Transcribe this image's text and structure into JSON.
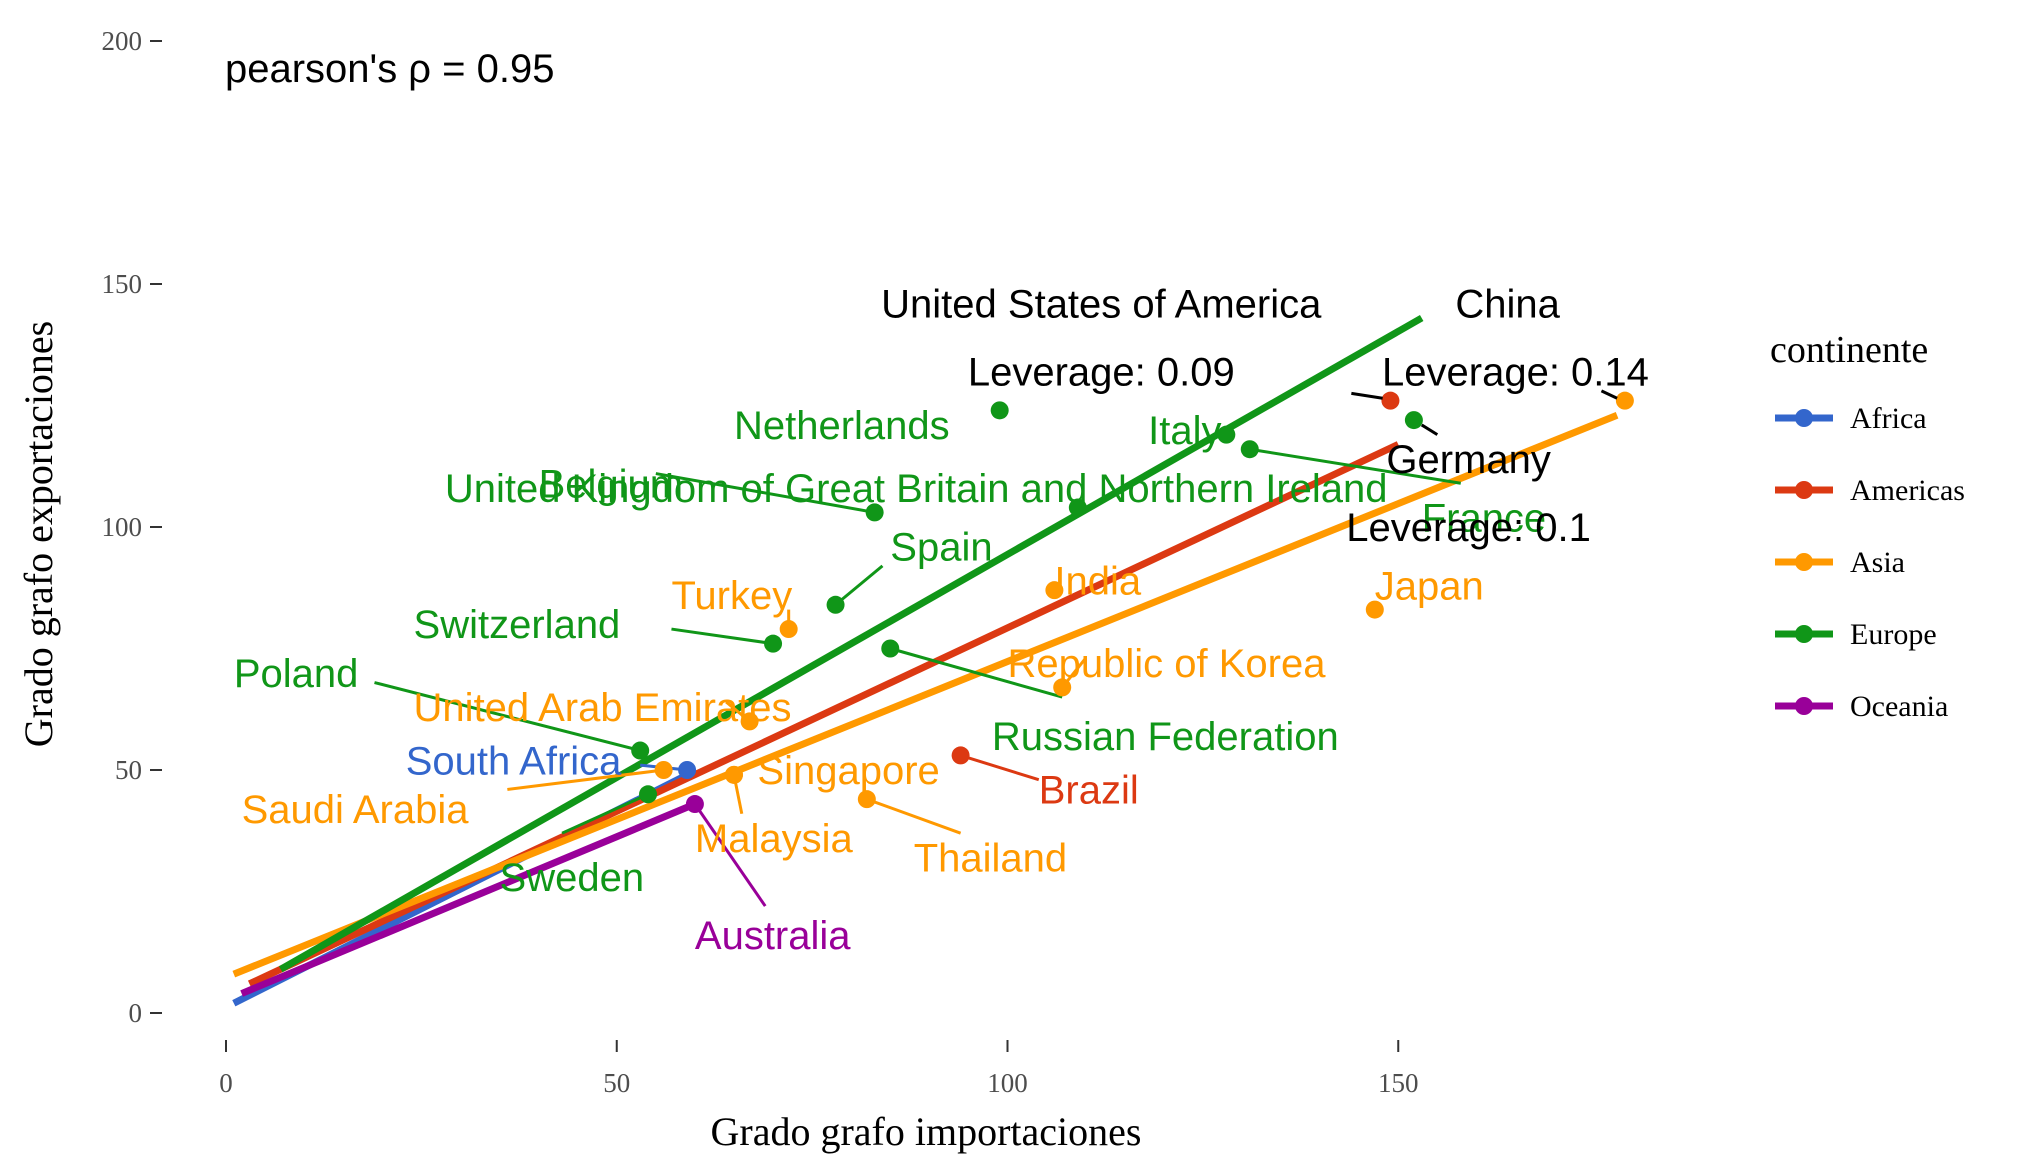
{
  "chart_data": {
    "type": "scatter",
    "annotation": "pearson's ρ = 0.95",
    "xlabel": "Grado grafo importaciones",
    "ylabel": "Grado grafo exportaciones",
    "xlim": [
      0,
      185
    ],
    "ylim": [
      0,
      200
    ],
    "x_ticks": [
      0,
      50,
      100,
      150
    ],
    "y_ticks": [
      0,
      50,
      100,
      150,
      200
    ],
    "grid": false,
    "legend": {
      "title": "continente",
      "placement": "right",
      "entries": [
        "Africa",
        "Americas",
        "Asia",
        "Europe",
        "Oceania"
      ]
    },
    "colors": {
      "Africa": "#3366cc",
      "Americas": "#dc3912",
      "Asia": "#ff9900",
      "Europe": "#109618",
      "Oceania": "#990099"
    },
    "points": [
      {
        "name": "South Africa",
        "continent": "Africa",
        "x": 59,
        "y": 50
      },
      {
        "name": "Brazil",
        "continent": "Americas",
        "x": 94,
        "y": 53
      },
      {
        "name": "United States of America",
        "continent": "Americas",
        "x": 149,
        "y": 126
      },
      {
        "name": "China",
        "continent": "Asia",
        "x": 179,
        "y": 126
      },
      {
        "name": "Japan",
        "continent": "Asia",
        "x": 147,
        "y": 83
      },
      {
        "name": "India",
        "continent": "Asia",
        "x": 106,
        "y": 87
      },
      {
        "name": "Republic of Korea",
        "continent": "Asia",
        "x": 107,
        "y": 67
      },
      {
        "name": "Turkey",
        "continent": "Asia",
        "x": 72,
        "y": 79
      },
      {
        "name": "United Arab Emirates",
        "continent": "Asia",
        "x": 67,
        "y": 60
      },
      {
        "name": "Singapore",
        "continent": "Asia",
        "x": 65,
        "y": 49
      },
      {
        "name": "Malaysia",
        "continent": "Asia",
        "x": 65,
        "y": 49
      },
      {
        "name": "Thailand",
        "continent": "Asia",
        "x": 82,
        "y": 44
      },
      {
        "name": "Saudi Arabia",
        "continent": "Asia",
        "x": 56,
        "y": 50
      },
      {
        "name": "Germany",
        "continent": "Europe",
        "x": 152,
        "y": 122
      },
      {
        "name": "France",
        "continent": "Europe",
        "x": 131,
        "y": 116
      },
      {
        "name": "Italy",
        "continent": "Europe",
        "x": 128,
        "y": 119
      },
      {
        "name": "Netherlands",
        "continent": "Europe",
        "x": 99,
        "y": 124
      },
      {
        "name": "United Kingdom of Great Britain and Northern Ireland",
        "continent": "Europe",
        "x": 109,
        "y": 104
      },
      {
        "name": "Belgium",
        "continent": "Europe",
        "x": 83,
        "y": 103
      },
      {
        "name": "Spain",
        "continent": "Europe",
        "x": 78,
        "y": 84
      },
      {
        "name": "Switzerland",
        "continent": "Europe",
        "x": 70,
        "y": 76
      },
      {
        "name": "Russian Federation",
        "continent": "Europe",
        "x": 85,
        "y": 75
      },
      {
        "name": "Poland",
        "continent": "Europe",
        "x": 53,
        "y": 54
      },
      {
        "name": "Sweden",
        "continent": "Europe",
        "x": 54,
        "y": 45
      },
      {
        "name": "Australia",
        "continent": "Oceania",
        "x": 60,
        "y": 43
      }
    ],
    "fit_lines": [
      {
        "continent": "Africa",
        "x": [
          1,
          59
        ],
        "y": [
          2,
          49
        ]
      },
      {
        "continent": "Americas",
        "x": [
          3,
          150
        ],
        "y": [
          6,
          117
        ]
      },
      {
        "continent": "Asia",
        "x": [
          1,
          178
        ],
        "y": [
          8,
          123
        ]
      },
      {
        "continent": "Europe",
        "x": [
          7,
          153
        ],
        "y": [
          9,
          143
        ]
      },
      {
        "continent": "Oceania",
        "x": [
          2,
          60
        ],
        "y": [
          4,
          43
        ]
      }
    ],
    "annotations": [
      {
        "text": "United States of America",
        "x": 112,
        "y": 146
      },
      {
        "text": "Leverage: 0.09",
        "x": 112,
        "y": 132
      },
      {
        "text": "China",
        "x": 164,
        "y": 146
      },
      {
        "text": "Leverage: 0.14",
        "x": 165,
        "y": 132
      },
      {
        "text": "Germany",
        "x": 159,
        "y": 114
      },
      {
        "text": "Leverage: 0.1",
        "x": 159,
        "y": 100
      }
    ]
  }
}
